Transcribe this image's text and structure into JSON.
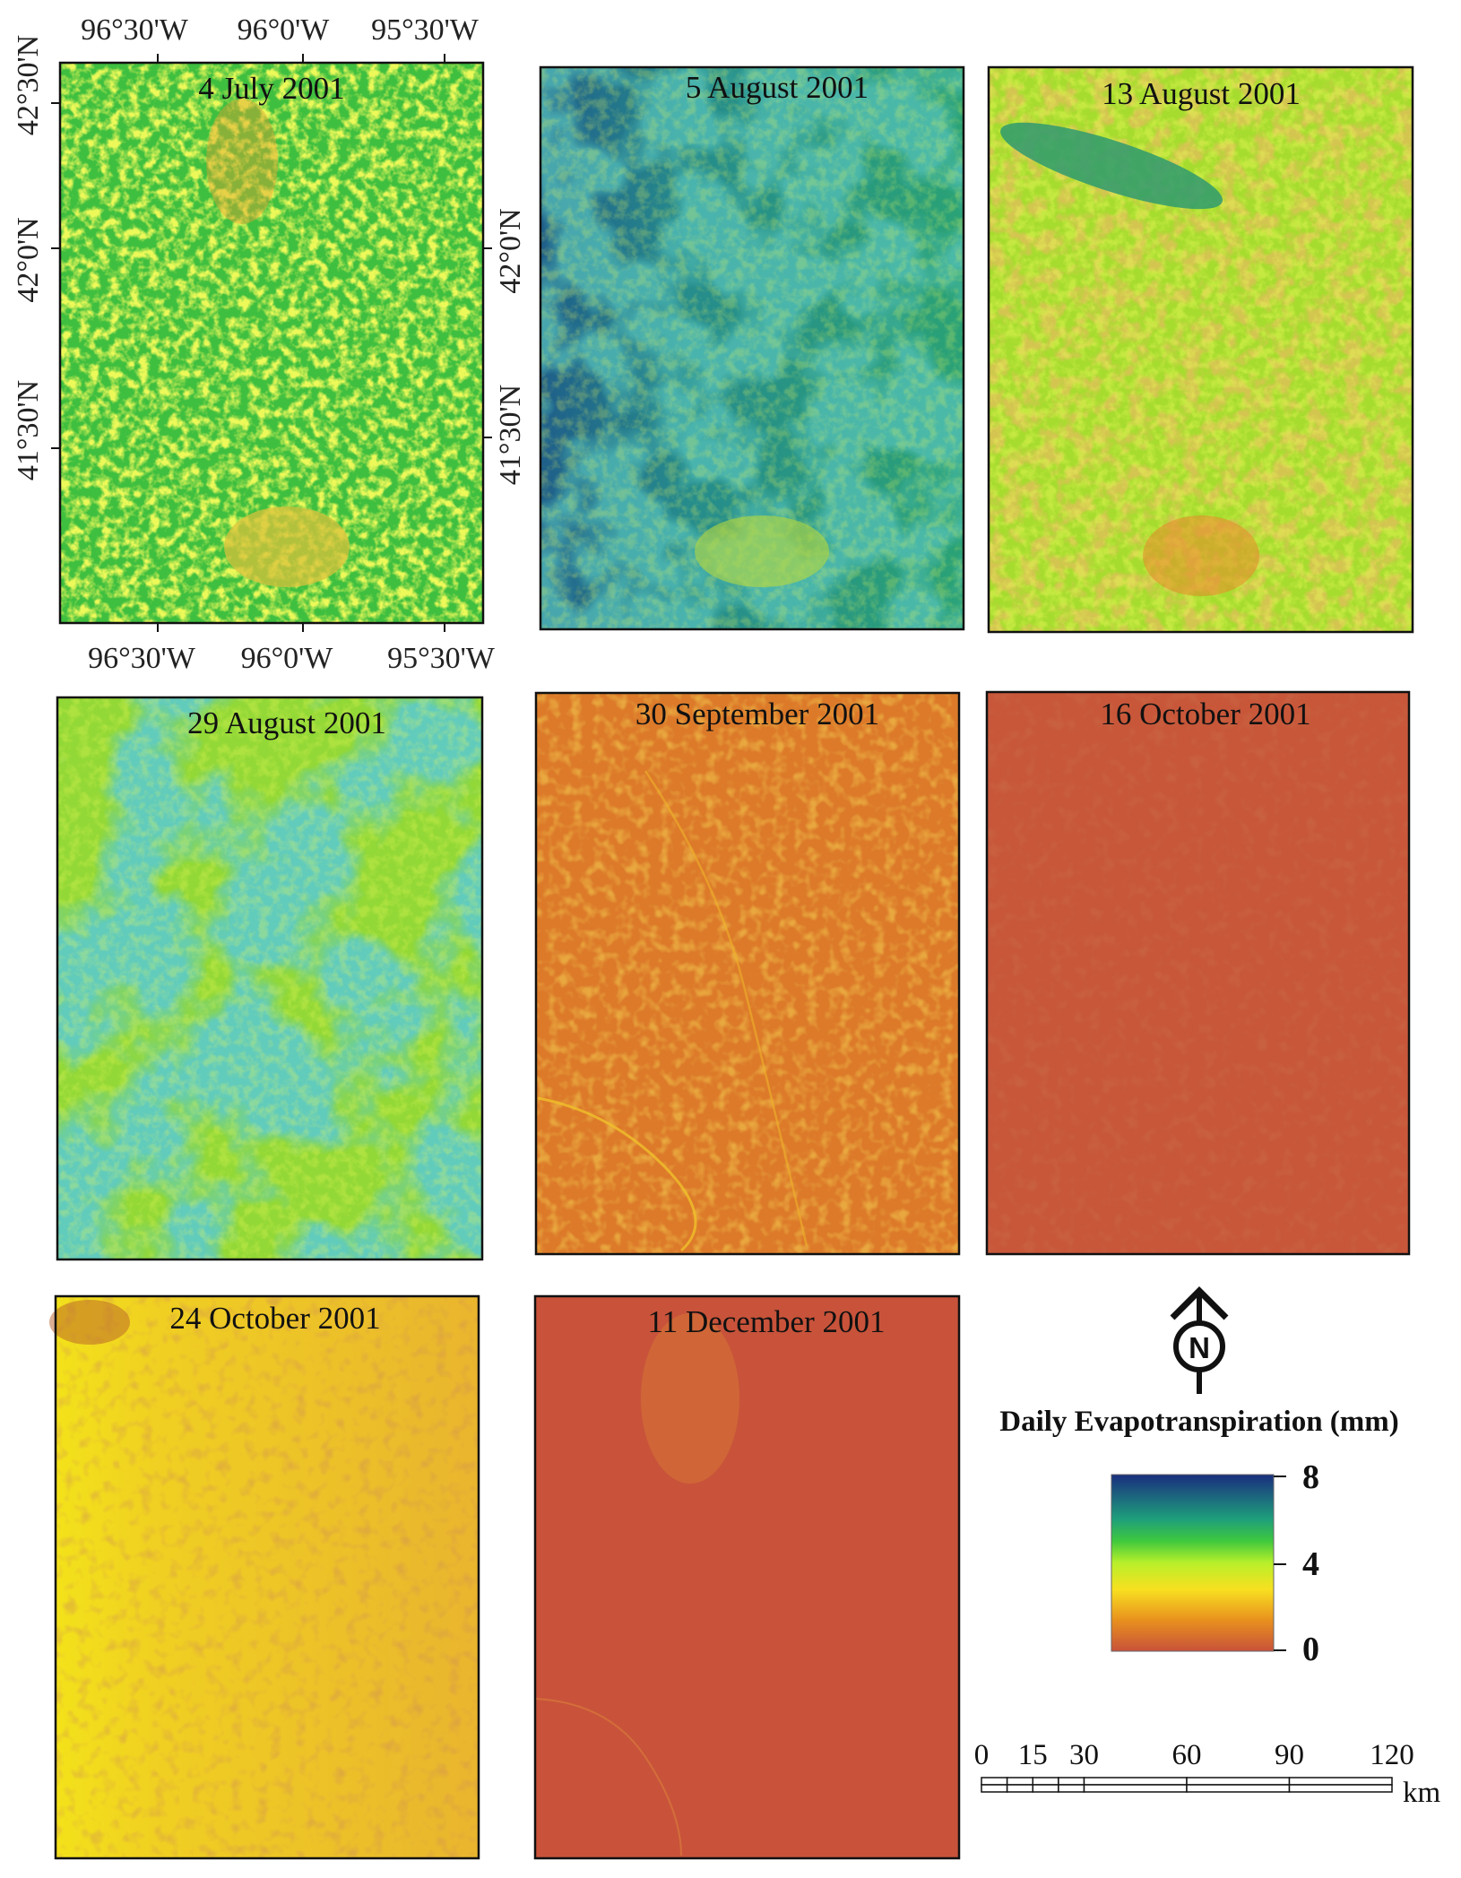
{
  "panels": [
    {
      "id": "p1",
      "title": "4 July 2001",
      "scheme": "july"
    },
    {
      "id": "p2",
      "title": "5 August 2001",
      "scheme": "aug5"
    },
    {
      "id": "p3",
      "title": "13 August 2001",
      "scheme": "aug13"
    },
    {
      "id": "p4",
      "title": "29 August 2001",
      "scheme": "aug29"
    },
    {
      "id": "p5",
      "title": "30 September 2001",
      "scheme": "sep30"
    },
    {
      "id": "p6",
      "title": "16 October 2001",
      "scheme": "oct16"
    },
    {
      "id": "p7",
      "title": "24 October 2001",
      "scheme": "oct24"
    },
    {
      "id": "p8",
      "title": "11 December 2001",
      "scheme": "dec11"
    }
  ],
  "coords": {
    "top_lon": [
      "96°30'W",
      "96°0'W",
      "95°30'W"
    ],
    "bottom_lon": [
      "96°30'W",
      "96°0'W",
      "95°30'W"
    ],
    "left_lat": [
      "42°30'N",
      "42°0'N",
      "41°30'N"
    ],
    "mid_lat": [
      "42°0'N",
      "41°30'N"
    ]
  },
  "north_arrow": {
    "letter": "N"
  },
  "legend": {
    "title": "Daily Evapotranspiration (mm)",
    "max_label": "8",
    "mid_label": "4",
    "min_label": "0",
    "stops": [
      {
        "value": 0,
        "color": "#c8523a"
      },
      {
        "value": 1.4,
        "color": "#e8901e"
      },
      {
        "value": 2.8,
        "color": "#f8e020"
      },
      {
        "value": 4,
        "color": "#b8f02a"
      },
      {
        "value": 5,
        "color": "#3ec83e"
      },
      {
        "value": 6,
        "color": "#1e9e7c"
      },
      {
        "value": 8,
        "color": "#1a2e7e"
      }
    ]
  },
  "scale_bar": {
    "labels": [
      "0",
      "15",
      "30",
      "60",
      "90",
      "120"
    ],
    "values": [
      0,
      15,
      30,
      60,
      90,
      120
    ],
    "unit": "km"
  }
}
